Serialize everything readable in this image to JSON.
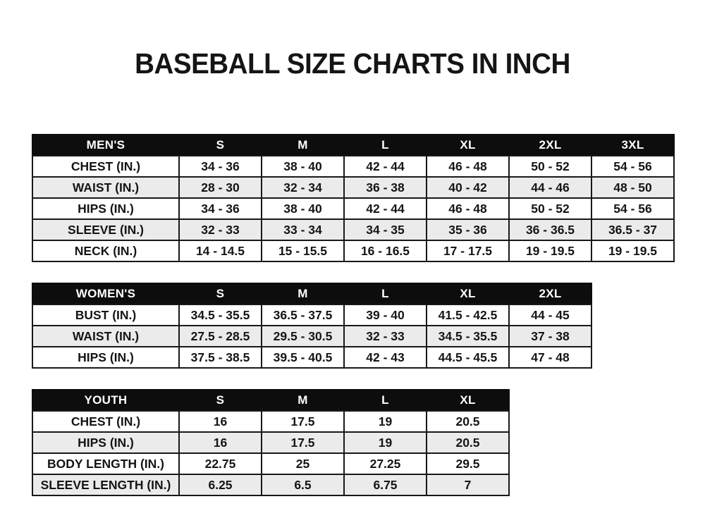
{
  "title": "BASEBALL SIZE CHARTS IN INCH",
  "colors": {
    "page_bg": "#ffffff",
    "header_bg": "#0d0d0d",
    "header_text": "#ffffff",
    "row_bg": "#ffffff",
    "row_alt_bg": "#ebebeb",
    "border": "#181818",
    "text": "#151515"
  },
  "chart_data": [
    {
      "type": "table",
      "name": "mens",
      "columns": [
        "MEN'S",
        "S",
        "M",
        "L",
        "XL",
        "2XL",
        "3XL"
      ],
      "rows": [
        [
          "CHEST (IN.)",
          "34 - 36",
          "38 - 40",
          "42 - 44",
          "46 - 48",
          "50 - 52",
          "54 - 56"
        ],
        [
          "WAIST (IN.)",
          "28 - 30",
          "32 - 34",
          "36 - 38",
          "40 - 42",
          "44 - 46",
          "48 - 50"
        ],
        [
          "HIPS (IN.)",
          "34 - 36",
          "38 - 40",
          "42 - 44",
          "46 - 48",
          "50 - 52",
          "54 - 56"
        ],
        [
          "SLEEVE (IN.)",
          "32 - 33",
          "33 - 34",
          "34 - 35",
          "35 - 36",
          "36 - 36.5",
          "36.5 - 37"
        ],
        [
          "NECK (IN.)",
          "14 - 14.5",
          "15 - 15.5",
          "16 - 16.5",
          "17 - 17.5",
          "19 - 19.5",
          "19 - 19.5"
        ]
      ]
    },
    {
      "type": "table",
      "name": "womens",
      "columns": [
        "WOMEN'S",
        "S",
        "M",
        "L",
        "XL",
        "2XL"
      ],
      "rows": [
        [
          "BUST (IN.)",
          "34.5 - 35.5",
          "36.5 - 37.5",
          "39 - 40",
          "41.5 - 42.5",
          "44 - 45"
        ],
        [
          "WAIST (IN.)",
          "27.5 - 28.5",
          "29.5 - 30.5",
          "32 - 33",
          "34.5 - 35.5",
          "37 - 38"
        ],
        [
          "HIPS (IN.)",
          "37.5 - 38.5",
          "39.5 - 40.5",
          "42 - 43",
          "44.5 - 45.5",
          "47 - 48"
        ]
      ]
    },
    {
      "type": "table",
      "name": "youth",
      "columns": [
        "YOUTH",
        "S",
        "M",
        "L",
        "XL"
      ],
      "rows": [
        [
          "CHEST (IN.)",
          "16",
          "17.5",
          "19",
          "20.5"
        ],
        [
          "HIPS (IN.)",
          "16",
          "17.5",
          "19",
          "20.5"
        ],
        [
          "BODY LENGTH (IN.)",
          "22.75",
          "25",
          "27.25",
          "29.5"
        ],
        [
          "SLEEVE LENGTH (IN.)",
          "6.25",
          "6.5",
          "6.75",
          "7"
        ]
      ]
    }
  ]
}
